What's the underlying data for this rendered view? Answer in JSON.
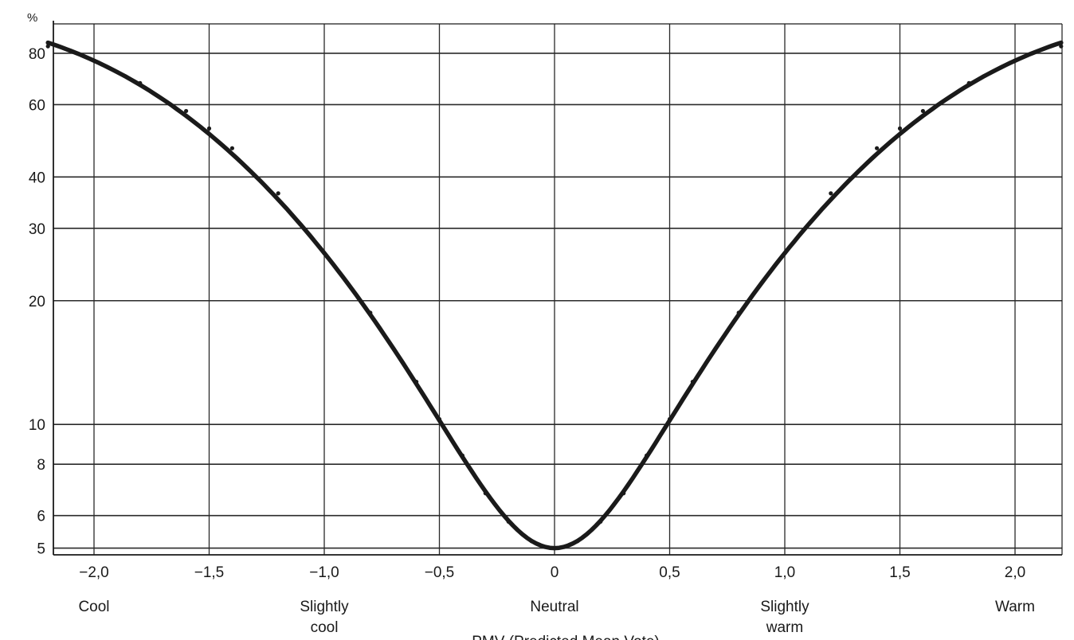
{
  "chart_data": {
    "type": "line",
    "y_unit": "%",
    "xlabel": "PMV (Predicted Mean Vote)",
    "ylabel": "",
    "xlim": [
      -2.2,
      2.2
    ],
    "ylim": [
      4.5,
      88
    ],
    "y_scale": "log",
    "grid": true,
    "x_ticks": [
      {
        "value": -2.0,
        "label": "−2,0"
      },
      {
        "value": -1.5,
        "label": "−1,5"
      },
      {
        "value": -1.0,
        "label": "−1,0"
      },
      {
        "value": -0.5,
        "label": "−0,5"
      },
      {
        "value": 0,
        "label": "0"
      },
      {
        "value": 0.5,
        "label": "0,5"
      },
      {
        "value": 1.0,
        "label": "1,0"
      },
      {
        "value": 1.5,
        "label": "1,5"
      },
      {
        "value": 2.0,
        "label": "2,0"
      }
    ],
    "x_grid_extra": [
      -2.2,
      2.2
    ],
    "y_ticks": [
      {
        "value": 5,
        "label": "5"
      },
      {
        "value": 6,
        "label": "6"
      },
      {
        "value": 8,
        "label": "8"
      },
      {
        "value": 10,
        "label": "10"
      },
      {
        "value": 20,
        "label": "20"
      },
      {
        "value": 30,
        "label": "30"
      },
      {
        "value": 40,
        "label": "40"
      },
      {
        "value": 60,
        "label": "60"
      },
      {
        "value": 80,
        "label": "80"
      }
    ],
    "sensation_labels": [
      {
        "x": -2.0,
        "lines": [
          "Cool"
        ]
      },
      {
        "x": -1.0,
        "lines": [
          "Slightly",
          "cool"
        ]
      },
      {
        "x": 0,
        "lines": [
          "Neutral"
        ]
      },
      {
        "x": 1.0,
        "lines": [
          "Slightly",
          "warm"
        ]
      },
      {
        "x": 2.0,
        "lines": [
          "Warm"
        ]
      }
    ],
    "series": [
      {
        "x": [
          -2.2,
          -2.0,
          -1.8,
          -1.6,
          -1.5,
          -1.4,
          -1.2,
          -1.0,
          -0.8,
          -0.6,
          -0.5,
          -0.4,
          -0.3,
          -0.2,
          -0.1,
          0,
          0.1,
          0.2,
          0.3,
          0.4,
          0.5,
          0.6,
          0.8,
          1.0,
          1.2,
          1.4,
          1.5,
          1.6,
          1.8,
          2.0,
          2.2
        ],
        "values": [
          83.2,
          76.8,
          67.7,
          57.9,
          52.5,
          47.0,
          36.5,
          26.1,
          18.7,
          12.7,
          10.3,
          8.4,
          6.8,
          5.8,
          5.2,
          5.0,
          5.2,
          5.8,
          6.8,
          8.4,
          10.3,
          12.7,
          18.7,
          26.1,
          36.5,
          47.0,
          52.5,
          57.9,
          67.7,
          76.8,
          83.2
        ]
      }
    ],
    "line_color": "#1a1a1a",
    "grid_color": "#2a2a2a"
  }
}
